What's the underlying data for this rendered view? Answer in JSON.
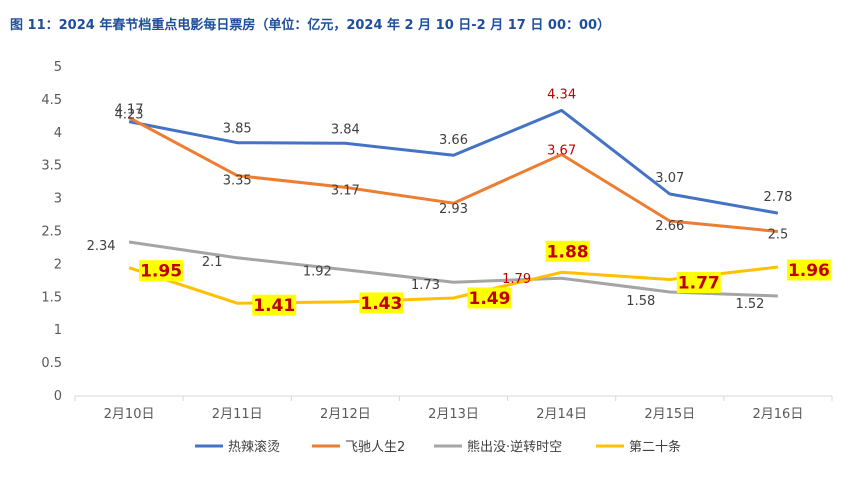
{
  "figure_title": "图 11：2024 年春节档重点电影每日票房（单位：亿元，2024 年 2 月 10 日-2 月 17 日 00：00）",
  "chart_data": {
    "type": "line",
    "title": "",
    "categories": [
      "2月10日",
      "2月11日",
      "2月12日",
      "2月13日",
      "2月14日",
      "2月15日",
      "2月16日"
    ],
    "y_ticks": [
      "0",
      "0.5",
      "1",
      "1.5",
      "2",
      "2.5",
      "3",
      "3.5",
      "4",
      "4.5",
      "5"
    ],
    "ylim": [
      0,
      5
    ],
    "grid": false,
    "legend_position": "bottom",
    "series": [
      {
        "name": "热辣滚烫",
        "color": "#4472c4",
        "values": [
          4.17,
          3.85,
          3.84,
          3.66,
          4.34,
          3.07,
          2.78
        ],
        "labels": [
          "4.17",
          "3.85",
          "3.84",
          "3.66",
          "4.34",
          "3.07",
          "2.78"
        ]
      },
      {
        "name": "飞驰人生2",
        "color": "#ed7d31",
        "values": [
          4.23,
          3.35,
          3.17,
          2.93,
          3.67,
          2.66,
          2.5
        ],
        "labels": [
          "4.23",
          "3.35",
          "3.17",
          "2.93",
          "3.67",
          "2.66",
          "2.5"
        ]
      },
      {
        "name": "熊出没·逆转时空",
        "color": "#a5a5a5",
        "values": [
          2.34,
          2.1,
          1.92,
          1.73,
          1.79,
          1.58,
          1.52
        ],
        "labels": [
          "2.34",
          "2.1",
          "1.92",
          "1.73",
          "1.79",
          "1.58",
          "1.52"
        ]
      },
      {
        "name": "第二十条",
        "color": "#ffc000",
        "values": [
          1.95,
          1.41,
          1.43,
          1.49,
          1.88,
          1.77,
          1.96
        ],
        "labels": [
          "1.95",
          "1.41",
          "1.43",
          "1.49",
          "1.88",
          "1.77",
          "1.96"
        ]
      }
    ]
  }
}
